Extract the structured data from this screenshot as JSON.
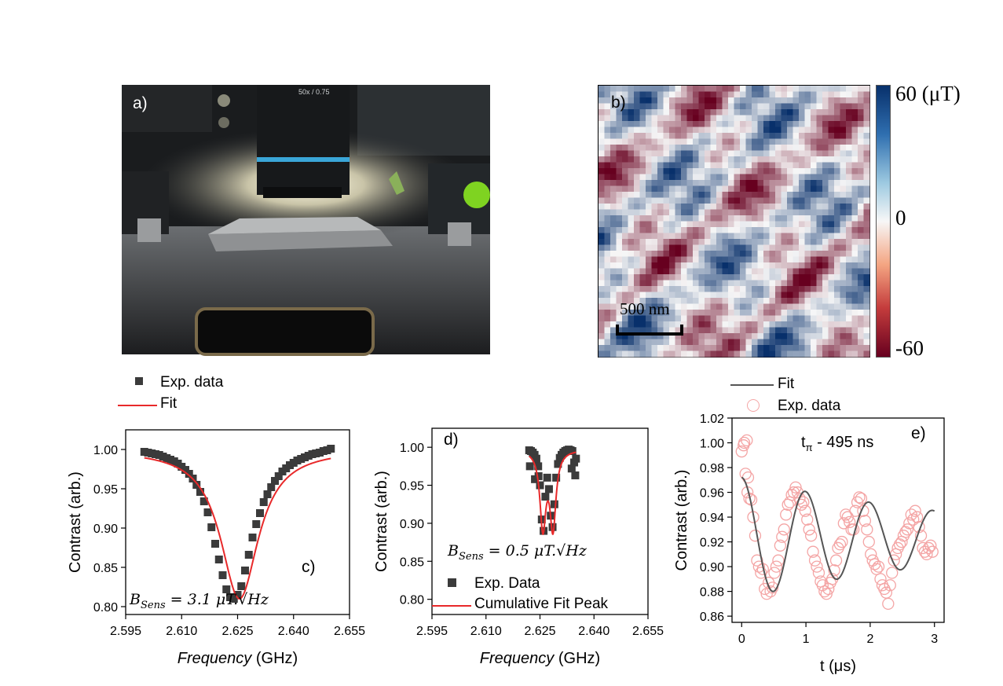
{
  "panels": {
    "a": {
      "label": "a)",
      "objective_text": "50x / 0.75"
    },
    "b": {
      "label": "b)",
      "colorbar": {
        "max_label": "60 (μT)",
        "mid_label": "0",
        "min_label": "-60"
      },
      "scalebar_label": "500 nm",
      "colors": {
        "positive": "#08306b",
        "zero": "#f7f7f7",
        "negative": "#67001f"
      }
    },
    "c": {
      "label": "c)",
      "legend": [
        "Exp. data",
        "Fit"
      ],
      "annotation": "B_Sens = 3.1 μT.√Hz",
      "annotation_parts": {
        "b": "B",
        "sub": "Sens",
        "rest": " = 3.1 μT.√Hz"
      }
    },
    "d": {
      "label": "d)",
      "legend": [
        "Exp. Data",
        "Cumulative Fit Peak"
      ],
      "annotation": "B_Sens = 0.5 μT.√Hz",
      "annotation_parts": {
        "b": "B",
        "sub": "Sens",
        "rest": " = 0.5 μT.√Hz"
      }
    },
    "e": {
      "label": "e)",
      "legend": [
        "Fit",
        "Exp. data"
      ],
      "annotation": "tπ - 495 ns",
      "annotation_parts": {
        "t": "t",
        "sub": "π",
        "rest": " - 495 ns"
      }
    }
  },
  "chart_data": [
    {
      "id": "c",
      "type": "scatter",
      "xlabel_italic": "Frequency",
      "xlabel_unit": " (GHz)",
      "ylabel": "Contrast (arb.)",
      "xlim": [
        2.595,
        2.655
      ],
      "ylim": [
        0.79,
        1.025
      ],
      "xticks": [
        "2.595",
        "2.610",
        "2.625",
        "2.640",
        "2.655"
      ],
      "yticks": [
        "0.80",
        "0.85",
        "0.90",
        "0.95",
        "1.00"
      ],
      "series": [
        {
          "name": "Exp. data",
          "kind": "squares",
          "x": [
            2.6,
            2.601,
            2.602,
            2.603,
            2.604,
            2.605,
            2.606,
            2.607,
            2.608,
            2.609,
            2.61,
            2.611,
            2.612,
            2.613,
            2.614,
            2.615,
            2.616,
            2.617,
            2.618,
            2.619,
            2.62,
            2.621,
            2.622,
            2.623,
            2.624,
            2.625,
            2.626,
            2.627,
            2.628,
            2.629,
            2.63,
            2.631,
            2.632,
            2.633,
            2.634,
            2.635,
            2.636,
            2.637,
            2.638,
            2.639,
            2.64,
            2.641,
            2.642,
            2.643,
            2.644,
            2.645,
            2.646,
            2.647,
            2.648,
            2.649,
            2.65
          ],
          "y": [
            0.997,
            0.996,
            0.995,
            0.994,
            0.993,
            0.991,
            0.989,
            0.987,
            0.985,
            0.982,
            0.978,
            0.974,
            0.969,
            0.963,
            0.955,
            0.946,
            0.934,
            0.92,
            0.901,
            0.88,
            0.86,
            0.84,
            0.822,
            0.812,
            0.81,
            0.815,
            0.826,
            0.846,
            0.866,
            0.888,
            0.905,
            0.919,
            0.933,
            0.943,
            0.952,
            0.96,
            0.966,
            0.972,
            0.976,
            0.98,
            0.983,
            0.986,
            0.988,
            0.99,
            0.992,
            0.994,
            0.995,
            0.996,
            0.998,
            0.999,
            1.001
          ]
        },
        {
          "name": "Fit",
          "kind": "lorentz-line",
          "color": "#e8292a",
          "params": {
            "baseline": 1.0,
            "depth": 0.19,
            "center": 2.6255,
            "hwhm": 0.0062
          },
          "x_range": [
            2.6,
            2.65
          ]
        }
      ]
    },
    {
      "id": "d",
      "type": "scatter",
      "xlabel_italic": "Frequency",
      "xlabel_unit": " (GHz)",
      "ylabel": "Contrast (arb.)",
      "xlim": [
        2.595,
        2.655
      ],
      "ylim": [
        0.78,
        1.025
      ],
      "xticks": [
        "2.595",
        "2.610",
        "2.625",
        "2.640",
        "2.655"
      ],
      "yticks": [
        "0.80",
        "0.85",
        "0.90",
        "0.95",
        "1.00"
      ],
      "series": [
        {
          "name": "Exp. Data",
          "kind": "squares",
          "x": [
            2.622,
            2.6225,
            2.623,
            2.6235,
            2.624,
            2.6245,
            2.625,
            2.6255,
            2.626,
            2.6265,
            2.627,
            2.6275,
            2.628,
            2.6285,
            2.629,
            2.6295,
            2.63,
            2.6305,
            2.631,
            2.6315,
            2.632,
            2.6325,
            2.633,
            2.6335,
            2.634,
            2.6345,
            2.635,
            2.6222,
            2.6236,
            2.6246,
            2.6338,
            2.6348
          ],
          "y": [
            0.996,
            0.995,
            0.993,
            0.99,
            0.985,
            0.975,
            0.95,
            0.905,
            0.89,
            0.935,
            0.96,
            0.945,
            0.91,
            0.895,
            0.925,
            0.96,
            0.978,
            0.986,
            0.99,
            0.993,
            0.995,
            0.996,
            0.997,
            0.996,
            0.995,
            0.98,
            0.985,
            0.975,
            0.958,
            0.962,
            0.972,
            0.963
          ]
        },
        {
          "name": "Cumulative Fit Peak",
          "kind": "double-lorentz-line",
          "color": "#e8292a",
          "params": {
            "baseline": 0.997,
            "depth": 0.1,
            "c1": 2.6258,
            "c2": 2.6286,
            "hwhm": 0.001
          },
          "x_range": [
            2.622,
            2.635
          ]
        }
      ]
    },
    {
      "id": "e",
      "type": "scatter",
      "xlabel": "t (μs)",
      "ylabel": "Contrast (arb.)",
      "xlim": [
        -0.15,
        3.15
      ],
      "ylim": [
        0.855,
        1.02
      ],
      "xticks": [
        "0",
        "1",
        "2",
        "3"
      ],
      "yticks": [
        "0.86",
        "0.88",
        "0.90",
        "0.92",
        "0.94",
        "0.96",
        "0.98",
        "1.00",
        "1.02"
      ],
      "series": [
        {
          "name": "Fit",
          "kind": "damped-cos-line",
          "color": "#555555",
          "params": {
            "offset": 0.923,
            "amp": 0.049,
            "period": 0.99,
            "tau": 3.8
          },
          "x_range": [
            0.0,
            3.0
          ]
        },
        {
          "name": "Exp. data",
          "kind": "open-circles",
          "color": "#f4a5a5",
          "x": [
            0.0,
            0.03,
            0.06,
            0.09,
            0.12,
            0.15,
            0.18,
            0.21,
            0.24,
            0.27,
            0.3,
            0.33,
            0.36,
            0.39,
            0.42,
            0.45,
            0.48,
            0.51,
            0.54,
            0.57,
            0.6,
            0.63,
            0.66,
            0.69,
            0.72,
            0.75,
            0.78,
            0.81,
            0.84,
            0.87,
            0.9,
            0.93,
            0.96,
            0.99,
            1.02,
            1.05,
            1.08,
            1.11,
            1.14,
            1.17,
            1.2,
            1.23,
            1.26,
            1.29,
            1.32,
            1.35,
            1.38,
            1.41,
            1.44,
            1.47,
            1.5,
            1.53,
            1.56,
            1.59,
            1.62,
            1.65,
            1.68,
            1.71,
            1.74,
            1.77,
            1.8,
            1.83,
            1.86,
            1.89,
            1.92,
            1.95,
            1.98,
            2.01,
            2.04,
            2.07,
            2.1,
            2.13,
            2.16,
            2.19,
            2.22,
            2.25,
            2.28,
            2.31,
            2.34,
            2.37,
            2.4,
            2.43,
            2.46,
            2.49,
            2.52,
            2.55,
            2.58,
            2.61,
            2.64,
            2.67,
            2.7,
            2.73,
            2.76,
            2.79,
            2.82,
            2.85,
            2.88,
            2.91,
            2.94,
            2.97,
            0.04,
            0.08,
            0.1
          ],
          "y": [
            0.993,
            0.998,
            0.975,
            0.96,
            0.955,
            0.954,
            0.94,
            0.925,
            0.905,
            0.9,
            0.895,
            0.898,
            0.882,
            0.878,
            0.887,
            0.88,
            0.883,
            0.895,
            0.9,
            0.905,
            0.917,
            0.924,
            0.93,
            0.942,
            0.95,
            0.952,
            0.958,
            0.96,
            0.964,
            0.96,
            0.955,
            0.95,
            0.952,
            0.945,
            0.938,
            0.93,
            0.925,
            0.912,
            0.905,
            0.9,
            0.895,
            0.888,
            0.885,
            0.88,
            0.878,
            0.882,
            0.887,
            0.89,
            0.897,
            0.905,
            0.915,
            0.918,
            0.92,
            0.935,
            0.942,
            0.94,
            0.936,
            0.93,
            0.93,
            0.945,
            0.952,
            0.956,
            0.955,
            0.945,
            0.937,
            0.93,
            0.92,
            0.91,
            0.905,
            0.902,
            0.898,
            0.9,
            0.89,
            0.885,
            0.882,
            0.879,
            0.87,
            0.885,
            0.895,
            0.905,
            0.91,
            0.915,
            0.918,
            0.92,
            0.925,
            0.928,
            0.93,
            0.935,
            0.942,
            0.938,
            0.945,
            0.94,
            0.932,
            0.925,
            0.915,
            0.912,
            0.91,
            0.915,
            0.917,
            0.912,
            1.0,
            1.002,
            0.972
          ]
        }
      ]
    }
  ]
}
